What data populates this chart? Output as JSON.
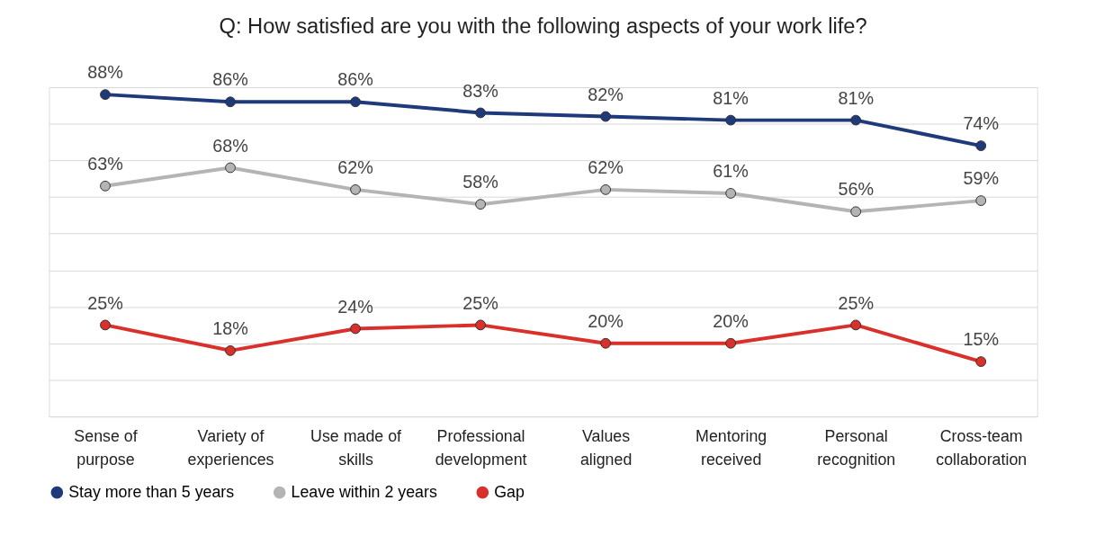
{
  "chart_data": {
    "type": "line",
    "title": "Q: How satisfied are you with the following aspects of your work life?",
    "categories": [
      "Sense of purpose",
      "Variety of experiences",
      "Use made of skills",
      "Professional development",
      "Values aligned",
      "Mentoring received",
      "Personal recognition",
      "Cross-team collaboration"
    ],
    "series": [
      {
        "name": "Stay more than 5 years",
        "color": "#1f3a7a",
        "values": [
          88,
          86,
          86,
          83,
          82,
          81,
          81,
          74
        ],
        "value_labels": [
          "88%",
          "86%",
          "86%",
          "83%",
          "82%",
          "81%",
          "81%",
          "74%"
        ]
      },
      {
        "name": "Leave within 2 years",
        "color": "#b4b4b4",
        "values": [
          63,
          68,
          62,
          58,
          62,
          61,
          56,
          59
        ],
        "value_labels": [
          "63%",
          "68%",
          "62%",
          "58%",
          "62%",
          "61%",
          "56%",
          "59%"
        ]
      },
      {
        "name": "Gap",
        "color": "#d9302b",
        "values": [
          25,
          18,
          24,
          25,
          20,
          20,
          25,
          15
        ],
        "value_labels": [
          "25%",
          "18%",
          "24%",
          "25%",
          "20%",
          "20%",
          "25%",
          "15%"
        ]
      }
    ],
    "tick_labels": "x",
    "grid": "y",
    "legend": "bottom",
    "marker": "circle",
    "line_style": "solid"
  }
}
